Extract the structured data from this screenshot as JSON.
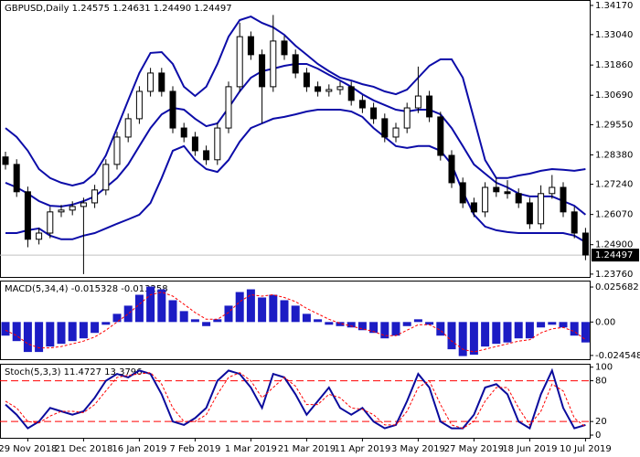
{
  "chart_data": [
    {
      "type": "candlestick",
      "title": "GBPUSD,Daily  1.24575 1.24631 1.24490 1.24497",
      "open": [
        1.283,
        1.2801,
        1.2695,
        1.2511,
        1.2535,
        1.2617,
        1.2624,
        1.2638,
        1.2652,
        1.2702,
        1.2801,
        1.2907,
        1.2978,
        1.3084,
        1.3155,
        1.3084,
        1.2942,
        1.2907,
        1.2854,
        1.2819,
        1.2942,
        1.3102,
        1.3296,
        1.3226,
        1.3102,
        1.3279,
        1.3226,
        1.3155,
        1.3102,
        1.3084,
        1.3091,
        1.3102,
        1.3049,
        1.302,
        1.2978,
        1.2907,
        1.2942,
        1.302,
        1.3066,
        1.2985,
        1.2836,
        1.273,
        1.2652,
        1.2617,
        1.2712,
        1.2695,
        1.2688,
        1.2652,
        1.2571,
        1.2688,
        1.2712,
        1.2617,
        1.2535
      ],
      "high": [
        1.285,
        1.2821,
        1.2715,
        1.2555,
        1.2637,
        1.2644,
        1.2658,
        1.2672,
        1.2722,
        1.2821,
        1.2927,
        1.2998,
        1.3104,
        1.3175,
        1.3175,
        1.3104,
        1.2962,
        1.2927,
        1.2874,
        1.2962,
        1.3122,
        1.335,
        1.3316,
        1.3246,
        1.338,
        1.3299,
        1.3246,
        1.3175,
        1.3122,
        1.3111,
        1.3122,
        1.3122,
        1.3069,
        1.304,
        1.2998,
        1.2962,
        1.304,
        1.318,
        1.3086,
        1.3005,
        1.2856,
        1.275,
        1.2672,
        1.2732,
        1.275,
        1.274,
        1.2708,
        1.2672,
        1.272,
        1.276,
        1.2732,
        1.2637,
        1.2555
      ],
      "low": [
        1.2781,
        1.2675,
        1.248,
        1.2491,
        1.2515,
        1.2597,
        1.2604,
        1.2376,
        1.2632,
        1.2682,
        1.2781,
        1.2887,
        1.2958,
        1.3064,
        1.3064,
        1.2922,
        1.2887,
        1.2834,
        1.2799,
        1.2799,
        1.2922,
        1.3082,
        1.3206,
        1.296,
        1.3082,
        1.3206,
        1.3135,
        1.3082,
        1.3064,
        1.3064,
        1.3071,
        1.3029,
        1.3,
        1.2958,
        1.2887,
        1.2887,
        1.2922,
        1.3,
        1.2965,
        1.2816,
        1.271,
        1.2632,
        1.2597,
        1.2597,
        1.2675,
        1.2668,
        1.2632,
        1.2551,
        1.2551,
        1.2668,
        1.2597,
        1.2515,
        1.243
      ],
      "close": [
        1.2801,
        1.2695,
        1.2511,
        1.2535,
        1.2617,
        1.2624,
        1.2638,
        1.2652,
        1.2702,
        1.2801,
        1.2907,
        1.2978,
        1.3084,
        1.3155,
        1.3084,
        1.2942,
        1.2907,
        1.2854,
        1.2819,
        1.2942,
        1.3102,
        1.3296,
        1.3226,
        1.3102,
        1.3279,
        1.3226,
        1.3155,
        1.3102,
        1.3084,
        1.3091,
        1.3102,
        1.3049,
        1.302,
        1.2978,
        1.2907,
        1.2942,
        1.302,
        1.3066,
        1.2985,
        1.2836,
        1.273,
        1.2652,
        1.2617,
        1.2712,
        1.2695,
        1.2688,
        1.2652,
        1.2571,
        1.2688,
        1.2712,
        1.2617,
        1.2535,
        1.245
      ],
      "bollinger": {
        "color": "#0c0ca8",
        "upper": [
          1.2942,
          1.2907,
          1.2854,
          1.2783,
          1.2748,
          1.273,
          1.2719,
          1.273,
          1.2765,
          1.2836,
          1.2942,
          1.3049,
          1.3155,
          1.3233,
          1.3236,
          1.319,
          1.3102,
          1.3066,
          1.3102,
          1.319,
          1.3296,
          1.336,
          1.3374,
          1.3349,
          1.3332,
          1.3303,
          1.3261,
          1.3226,
          1.319,
          1.3162,
          1.3137,
          1.3126,
          1.3112,
          1.3102,
          1.3084,
          1.3073,
          1.3091,
          1.3137,
          1.3183,
          1.3208,
          1.3208,
          1.3137,
          1.2978,
          1.2818,
          1.2748,
          1.2748,
          1.2758,
          1.2765,
          1.2776,
          1.2783,
          1.278,
          1.2776,
          1.2783
        ],
        "middle": [
          1.273,
          1.2712,
          1.2688,
          1.2659,
          1.2641,
          1.2638,
          1.2645,
          1.2659,
          1.2677,
          1.2712,
          1.2748,
          1.2801,
          1.2872,
          1.2942,
          1.2995,
          1.302,
          1.3013,
          1.2978,
          1.2949,
          1.296,
          1.302,
          1.3084,
          1.3137,
          1.3162,
          1.3172,
          1.3183,
          1.319,
          1.319,
          1.3172,
          1.3148,
          1.3126,
          1.3102,
          1.3073,
          1.3049,
          1.3031,
          1.3013,
          1.3006,
          1.3013,
          1.3013,
          1.2995,
          1.2942,
          1.2872,
          1.2801,
          1.2765,
          1.273,
          1.2712,
          1.2688,
          1.2677,
          1.2677,
          1.2677,
          1.2659,
          1.2641,
          1.2606
        ],
        "lower": [
          1.2535,
          1.2535,
          1.2546,
          1.2553,
          1.2525,
          1.2511,
          1.2511,
          1.2525,
          1.2535,
          1.2553,
          1.2571,
          1.2588,
          1.2606,
          1.2652,
          1.2748,
          1.2854,
          1.2872,
          1.2818,
          1.2783,
          1.2772,
          1.2818,
          1.2889,
          1.2942,
          1.296,
          1.2978,
          1.2985,
          1.2995,
          1.3006,
          1.3013,
          1.3013,
          1.3013,
          1.3006,
          1.2985,
          1.2942,
          1.2907,
          1.2872,
          1.2865,
          1.2872,
          1.2872,
          1.2854,
          1.2801,
          1.2695,
          1.2606,
          1.256,
          1.2546,
          1.2539,
          1.2535,
          1.2535,
          1.2535,
          1.2535,
          1.2535,
          1.2525,
          1.25
        ]
      },
      "last_price": 1.24497,
      "ylim": [
        1.2365,
        1.3438
      ],
      "yticks": [
        {
          "value": 1.3417,
          "label": "1.34170"
        },
        {
          "value": 1.3304,
          "label": "1.33040"
        },
        {
          "value": 1.3186,
          "label": "1.31860"
        },
        {
          "value": 1.3069,
          "label": "1.30690"
        },
        {
          "value": 1.2955,
          "label": "1.29550"
        },
        {
          "value": 1.2838,
          "label": "1.28380"
        },
        {
          "value": 1.2724,
          "label": "1.27240"
        },
        {
          "value": 1.2607,
          "label": "1.26070"
        },
        {
          "value": 1.249,
          "label": "1.24900"
        },
        {
          "value": 1.2376,
          "label": "1.23760"
        }
      ]
    },
    {
      "type": "macd",
      "title": "MACD(5,34,4) -0.015328 -0.013258",
      "color": "#1c1cc4",
      "signal_color": "#ff0000",
      "histogram": [
        -0.01,
        -0.014,
        -0.022,
        -0.022,
        -0.018,
        -0.016,
        -0.014,
        -0.012,
        -0.008,
        -0.002,
        0.006,
        0.012,
        0.02,
        0.026,
        0.024,
        0.016,
        0.008,
        0.002,
        -0.003,
        0.002,
        0.012,
        0.022,
        0.024,
        0.018,
        0.02,
        0.016,
        0.012,
        0.006,
        0.002,
        -0.002,
        -0.003,
        -0.004,
        -0.006,
        -0.008,
        -0.012,
        -0.01,
        -0.003,
        0.002,
        -0.002,
        -0.01,
        -0.02,
        -0.025,
        -0.024,
        -0.018,
        -0.016,
        -0.015,
        -0.012,
        -0.012,
        -0.004,
        -0.002,
        -0.004,
        -0.01,
        -0.015
      ],
      "signal": [
        -0.006,
        -0.01,
        -0.016,
        -0.019,
        -0.019,
        -0.018,
        -0.016,
        -0.014,
        -0.011,
        -0.006,
        0.0,
        0.006,
        0.013,
        0.02,
        0.022,
        0.019,
        0.013,
        0.007,
        0.002,
        0.002,
        0.007,
        0.015,
        0.02,
        0.019,
        0.02,
        0.018,
        0.015,
        0.01,
        0.006,
        0.002,
        -0.001,
        -0.003,
        -0.005,
        -0.007,
        -0.01,
        -0.01,
        -0.006,
        -0.002,
        -0.002,
        -0.006,
        -0.014,
        -0.02,
        -0.022,
        -0.02,
        -0.018,
        -0.016,
        -0.014,
        -0.013,
        -0.008,
        -0.005,
        -0.004,
        -0.007,
        -0.013
      ],
      "ylim": [
        -0.0273,
        0.0304
      ],
      "yticks": [
        0.025682,
        {
          "value": 0,
          "label": "0.00"
        },
        -0.024548
      ]
    },
    {
      "type": "stochastic",
      "title": "Stoch(5,3,3) 11.4727 13.3796",
      "k_color": "#0a0a9c",
      "d_color": "#ff0000",
      "k": [
        45,
        30,
        10,
        20,
        40,
        35,
        30,
        35,
        55,
        80,
        90,
        85,
        95,
        90,
        60,
        20,
        15,
        25,
        40,
        80,
        95,
        90,
        70,
        40,
        90,
        85,
        60,
        30,
        50,
        70,
        40,
        30,
        40,
        20,
        10,
        15,
        50,
        90,
        70,
        20,
        10,
        10,
        30,
        70,
        75,
        60,
        20,
        10,
        60,
        95,
        40,
        10,
        15
      ],
      "d": [
        50,
        40,
        20,
        18,
        28,
        35,
        35,
        33,
        45,
        65,
        85,
        88,
        90,
        92,
        75,
        40,
        20,
        20,
        30,
        60,
        85,
        92,
        80,
        55,
        70,
        85,
        72,
        45,
        45,
        60,
        55,
        40,
        38,
        30,
        15,
        15,
        35,
        70,
        80,
        45,
        15,
        10,
        20,
        50,
        70,
        70,
        40,
        15,
        35,
        75,
        65,
        25,
        12
      ],
      "levels": [
        80,
        20
      ],
      "ylim": [
        -4,
        105
      ],
      "yticks": [
        100,
        80,
        20,
        0
      ],
      "categories": [
        null,
        null,
        "29 Nov 2018",
        null,
        null,
        null,
        null,
        "21 Dec 2018",
        null,
        null,
        null,
        null,
        "16 Jan 2019",
        null,
        null,
        null,
        null,
        "7 Feb 2019",
        null,
        null,
        null,
        null,
        "1 Mar 2019",
        null,
        null,
        null,
        null,
        "21 Mar 2019",
        null,
        null,
        null,
        null,
        "11 Apr 2019",
        null,
        null,
        null,
        null,
        "3 May 2019",
        null,
        null,
        null,
        null,
        "27 May 2019",
        null,
        null,
        null,
        null,
        "18 Jun 2019",
        null,
        null,
        null,
        null,
        "10 Jul 2019"
      ]
    }
  ]
}
